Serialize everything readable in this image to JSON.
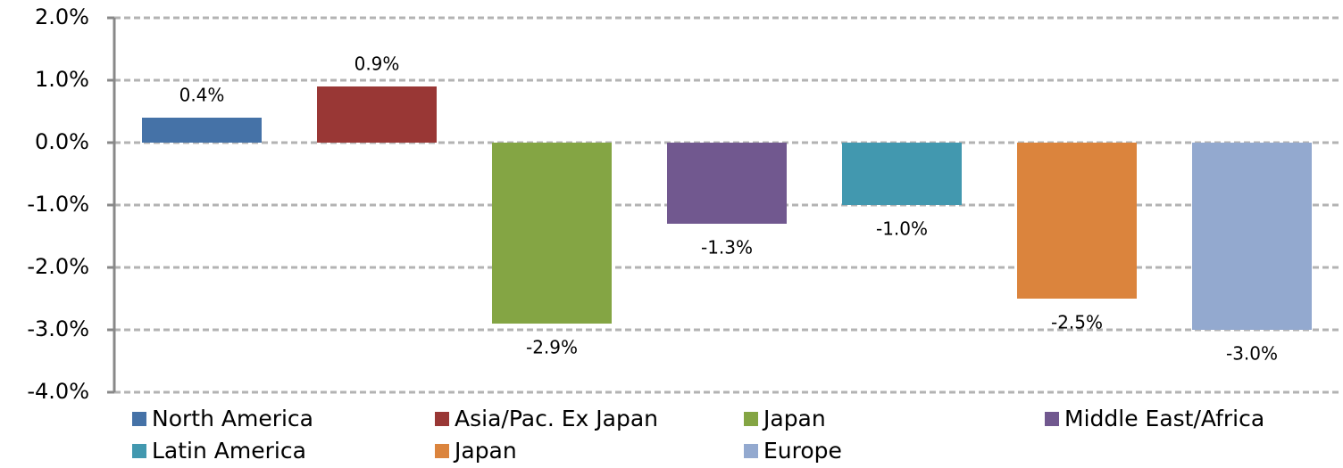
{
  "chart_data": {
    "type": "bar",
    "series": [
      {
        "name": "North America",
        "color": "#4572a7",
        "values": [
          0.4
        ],
        "value_labels": [
          "0.4%"
        ]
      },
      {
        "name": "Asia/Pac. Ex Japan",
        "color": "#993735",
        "values": [
          0.9
        ],
        "value_labels": [
          "0.9%"
        ]
      },
      {
        "name": "Japan",
        "color": "#84a544",
        "values": [
          -2.9
        ],
        "value_labels": [
          "-2.9%"
        ]
      },
      {
        "name": "Middle East/Africa",
        "color": "#71588f",
        "values": [
          -1.3
        ],
        "value_labels": [
          "-1.3%"
        ]
      },
      {
        "name": "Latin America",
        "color": "#4298af",
        "values": [
          -1.0
        ],
        "value_labels": [
          "-1.0%"
        ]
      },
      {
        "name": "Japan",
        "color": "#db843d",
        "values": [
          -2.5
        ],
        "value_labels": [
          "-2.5%"
        ]
      },
      {
        "name": "Europe",
        "color": "#93a9cf",
        "values": [
          -3.0
        ],
        "value_labels": [
          "-3.0%"
        ]
      }
    ],
    "ylim": [
      -4,
      2
    ],
    "yticks": [
      {
        "value": -4,
        "label": "-4.0%"
      },
      {
        "value": -3,
        "label": "-3.0%"
      },
      {
        "value": -2,
        "label": "-2.0%"
      },
      {
        "value": -1,
        "label": "-1.0%"
      },
      {
        "value": 0,
        "label": "0.0%"
      },
      {
        "value": 1,
        "label": "1.0%"
      },
      {
        "value": 2,
        "label": "2.0%"
      }
    ],
    "grid": true
  }
}
